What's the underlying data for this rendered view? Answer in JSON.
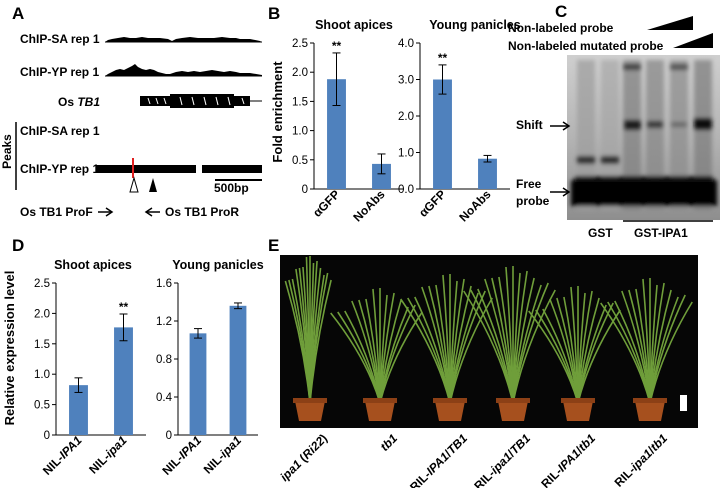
{
  "panelA": {
    "label": "A",
    "tracks": [
      "ChIP-SA rep 1",
      "ChIP-YP rep 1"
    ],
    "gene_prefix": "Os ",
    "gene_name": "TB1",
    "peaks_label": "Peaks",
    "peak_tracks": [
      "ChIP-SA rep 1",
      "ChIP-YP rep 1"
    ],
    "scale_label": "500bp",
    "primer_fwd": "Os TB1 ProF",
    "primer_rev": "Os TB1 ProR"
  },
  "panelB": {
    "label": "B",
    "ylabel": "Fold enrichment",
    "sig": "**",
    "chart_data": [
      {
        "type": "bar",
        "title": "Shoot apices",
        "categories": [
          "αGFP",
          "NoAbs"
        ],
        "values": [
          1.88,
          0.43
        ],
        "errors": [
          0.45,
          0.17
        ],
        "ylim": [
          0,
          2.5
        ],
        "yticks": [
          "0",
          "0.5",
          "1.0",
          "1.5",
          "2.0",
          "2.5"
        ]
      },
      {
        "type": "bar",
        "title": "Young panicles",
        "categories": [
          "αGFP",
          "NoAbs"
        ],
        "values": [
          3.0,
          0.83
        ],
        "errors": [
          0.4,
          0.09
        ],
        "ylim": [
          0,
          4.0
        ],
        "yticks": [
          "0.0",
          "1.0",
          "2.0",
          "3.0",
          "4.0"
        ]
      }
    ]
  },
  "panelC": {
    "label": "C",
    "probe1": "Non-labeled probe",
    "probe2": "Non-labeled mutated probe",
    "shift": "Shift",
    "free_line1": "Free",
    "free_line2": "probe",
    "gst": "GST",
    "gst_ipa1": "GST-IPA1"
  },
  "panelD": {
    "label": "D",
    "ylabel": "Relative expression level",
    "sig": "**",
    "chart_data": [
      {
        "type": "bar",
        "title": "Shoot apices",
        "categories": [
          "NIL-IPA1",
          "NIL-ipa1"
        ],
        "values": [
          0.82,
          1.77
        ],
        "errors": [
          0.12,
          0.22
        ],
        "ylim": [
          0,
          2.5
        ],
        "yticks": [
          "0",
          "0.5",
          "1.0",
          "1.5",
          "2.0",
          "2.5"
        ]
      },
      {
        "type": "bar",
        "title": "Young panicles",
        "categories": [
          "NIL-IPA1",
          "NIL-ipa1"
        ],
        "values": [
          1.07,
          1.36
        ],
        "errors": [
          0.05,
          0.03
        ],
        "ylim": [
          0,
          1.6
        ],
        "yticks": [
          "0",
          "0.4",
          "0.8",
          "1.2",
          "1.6"
        ]
      }
    ]
  },
  "panelE": {
    "label": "E",
    "plants": [
      "ipa1 (Ri22)",
      "tb1",
      "RIL-IPA1/TB1",
      "RIL-ipa1/TB1",
      "RIL-IPA1/tb1",
      "RIL-ipa1/tb1"
    ]
  },
  "colors": {
    "bar": "#4f81bd",
    "photo_bg": "#060606",
    "pot": "#a6501e",
    "leaf": "#6f9e3a"
  }
}
